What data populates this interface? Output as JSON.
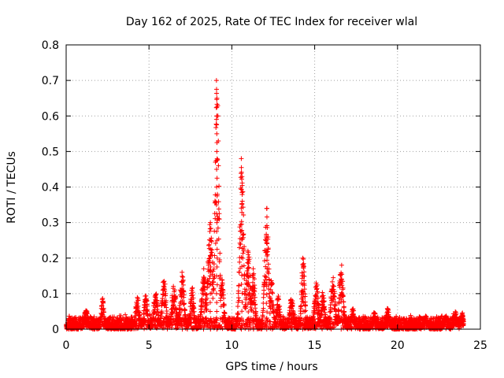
{
  "chart_data": {
    "type": "scatter",
    "title": "Day 162 of 2025, Rate Of TEC Index for receiver wlal",
    "xlabel": "GPS time / hours",
    "ylabel": "ROTI / TECUs",
    "xlim": [
      0,
      25
    ],
    "ylim": [
      0,
      0.8
    ],
    "x_ticks": [
      0,
      5,
      10,
      15,
      20,
      25
    ],
    "x_tick_labels": [
      "0",
      "5",
      "10",
      "15",
      "20",
      "25"
    ],
    "y_ticks": [
      0,
      0.1,
      0.2,
      0.3,
      0.4,
      0.5,
      0.6,
      0.7,
      0.8
    ],
    "y_tick_labels": [
      "0",
      "0.1",
      "0.2",
      "0.3",
      "0.4",
      "0.5",
      "0.6",
      "0.7",
      "0.8"
    ],
    "grid": true,
    "marker": "plus",
    "color": "#ff0000",
    "x_range": [
      0,
      24
    ],
    "baseline_max": 0.04,
    "bursts": [
      {
        "t": 1.2,
        "w": 0.12,
        "peak": 0.06
      },
      {
        "t": 2.2,
        "w": 0.08,
        "peak": 0.09
      },
      {
        "t": 4.3,
        "w": 0.12,
        "peak": 0.09
      },
      {
        "t": 4.8,
        "w": 0.1,
        "peak": 0.1
      },
      {
        "t": 5.4,
        "w": 0.12,
        "peak": 0.11
      },
      {
        "t": 5.9,
        "w": 0.12,
        "peak": 0.15
      },
      {
        "t": 6.5,
        "w": 0.12,
        "peak": 0.14
      },
      {
        "t": 7.0,
        "w": 0.12,
        "peak": 0.16
      },
      {
        "t": 7.6,
        "w": 0.1,
        "peak": 0.12
      },
      {
        "t": 8.3,
        "w": 0.12,
        "peak": 0.17
      },
      {
        "t": 8.7,
        "w": 0.15,
        "peak": 0.3
      },
      {
        "t": 9.1,
        "w": 0.12,
        "peak": 0.7
      },
      {
        "t": 9.4,
        "w": 0.12,
        "peak": 0.14
      },
      {
        "t": 10.6,
        "w": 0.12,
        "peak": 0.48
      },
      {
        "t": 11.0,
        "w": 0.12,
        "peak": 0.22
      },
      {
        "t": 11.3,
        "w": 0.1,
        "peak": 0.17
      },
      {
        "t": 12.1,
        "w": 0.12,
        "peak": 0.34
      },
      {
        "t": 12.4,
        "w": 0.1,
        "peak": 0.14
      },
      {
        "t": 12.8,
        "w": 0.1,
        "peak": 0.1
      },
      {
        "t": 13.6,
        "w": 0.12,
        "peak": 0.09
      },
      {
        "t": 14.3,
        "w": 0.1,
        "peak": 0.2
      },
      {
        "t": 15.1,
        "w": 0.12,
        "peak": 0.14
      },
      {
        "t": 15.5,
        "w": 0.1,
        "peak": 0.11
      },
      {
        "t": 16.1,
        "w": 0.12,
        "peak": 0.15
      },
      {
        "t": 16.6,
        "w": 0.12,
        "peak": 0.18
      },
      {
        "t": 17.3,
        "w": 0.1,
        "peak": 0.06
      },
      {
        "t": 18.6,
        "w": 0.1,
        "peak": 0.05
      },
      {
        "t": 19.4,
        "w": 0.1,
        "peak": 0.06
      },
      {
        "t": 21.7,
        "w": 0.1,
        "peak": 0.04
      },
      {
        "t": 22.9,
        "w": 0.1,
        "peak": 0.04
      },
      {
        "t": 23.5,
        "w": 0.1,
        "peak": 0.05
      },
      {
        "t": 23.9,
        "w": 0.08,
        "peak": 0.05
      }
    ]
  }
}
